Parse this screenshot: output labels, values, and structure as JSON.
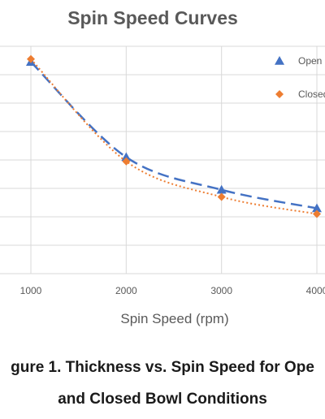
{
  "chart_data": {
    "type": "line",
    "title": "Spin Speed Curves",
    "xlabel": "Spin Speed (rpm)",
    "ylabel": "",
    "x_ticks": [
      1000,
      2000,
      3000,
      4000
    ],
    "xlim": [
      1000,
      4000
    ],
    "ylim": [
      0,
      8
    ],
    "grid": true,
    "legend_position": "top-right",
    "series": [
      {
        "name": "Open",
        "color": "#4472C4",
        "marker": "triangle",
        "line_style": "dashed",
        "x": [
          1000,
          2000,
          3000,
          4000
        ],
        "y": [
          7.45,
          4.1,
          2.95,
          2.3
        ]
      },
      {
        "name": "Closed",
        "color": "#ED7D31",
        "marker": "diamond",
        "line_style": "dotted",
        "x": [
          1000,
          2000,
          3000,
          4000
        ],
        "y": [
          7.55,
          3.95,
          2.7,
          2.1
        ]
      }
    ]
  },
  "caption": {
    "line1": "gure 1. Thickness vs. Spin Speed for Ope",
    "line2": "and Closed Bowl Conditions"
  },
  "legend_labels": [
    "Open",
    "Closed"
  ]
}
